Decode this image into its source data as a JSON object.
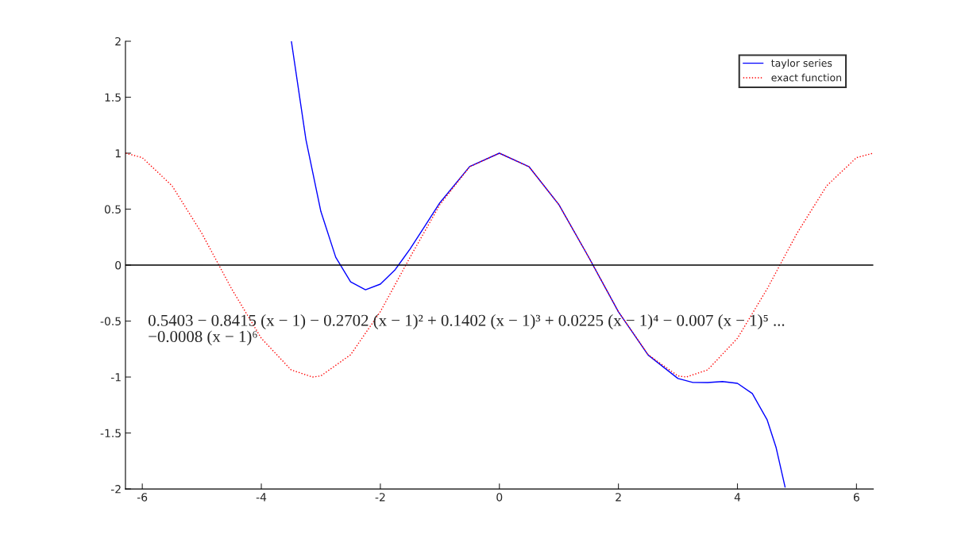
{
  "chart_data": {
    "type": "line",
    "series": [
      {
        "name": "taylor series",
        "color": "#0000ff",
        "line_style": "solid",
        "x": [
          -3.495,
          -3.25,
          -3,
          -2.75,
          -2.5,
          -2.25,
          -2,
          -1.75,
          -1.5,
          -1.25,
          -1,
          -0.5,
          0,
          0.5,
          1,
          1.5,
          2,
          2.5,
          3,
          3.25,
          3.5,
          3.75,
          4,
          4.25,
          4.5,
          4.65,
          4.8
        ],
        "values": [
          2.0,
          1.12,
          0.48,
          0.07,
          -0.15,
          -0.22,
          -0.17,
          -0.04,
          0.145,
          0.35,
          0.557,
          0.88,
          1.0,
          0.878,
          0.54,
          0.071,
          -0.417,
          -0.804,
          -1.013,
          -1.048,
          -1.049,
          -1.04,
          -1.056,
          -1.148,
          -1.384,
          -1.631,
          -1.983
        ]
      },
      {
        "name": "exact function",
        "color": "#ff0000",
        "line_style": "dotted",
        "x": [
          -6.28,
          -6,
          -5.5,
          -5,
          -4.5,
          -4,
          -3.5,
          -3.14,
          -3,
          -2.5,
          -2,
          -1.5,
          -1,
          -0.5,
          0,
          0.5,
          1,
          1.5,
          2,
          2.5,
          3,
          3.14,
          3.5,
          4,
          4.5,
          5,
          5.5,
          6,
          6.28
        ],
        "values": [
          1.0,
          0.96,
          0.709,
          0.284,
          -0.211,
          -0.654,
          -0.936,
          -1.0,
          -0.99,
          -0.801,
          -0.416,
          0.071,
          0.54,
          0.878,
          1.0,
          0.878,
          0.54,
          0.071,
          -0.416,
          -0.801,
          -0.99,
          -1.0,
          -0.936,
          -0.654,
          -0.211,
          0.284,
          0.709,
          0.96,
          1.0
        ]
      }
    ],
    "xlim": [
      -6.283,
      6.283
    ],
    "xticks": [
      -6,
      -4,
      -2,
      0,
      2,
      4,
      6
    ],
    "ylim": [
      -2,
      2
    ],
    "yticks": [
      -2,
      -1.5,
      -1,
      -0.5,
      0,
      0.5,
      1,
      1.5,
      2
    ],
    "ref_lines": [
      {
        "axis": "y",
        "value": 0,
        "color": "#000000",
        "line_style": "solid"
      }
    ],
    "annotations": [
      "0.5403 − 0.8415 (x − 1) − 0.2702 (x − 1)² + 0.1402 (x − 1)³ + 0.0225 (x − 1)⁴ − 0.007 (x − 1)⁵ ...\n−0.0008 (x − 1)⁶"
    ],
    "legend": "top right",
    "grid": false
  }
}
